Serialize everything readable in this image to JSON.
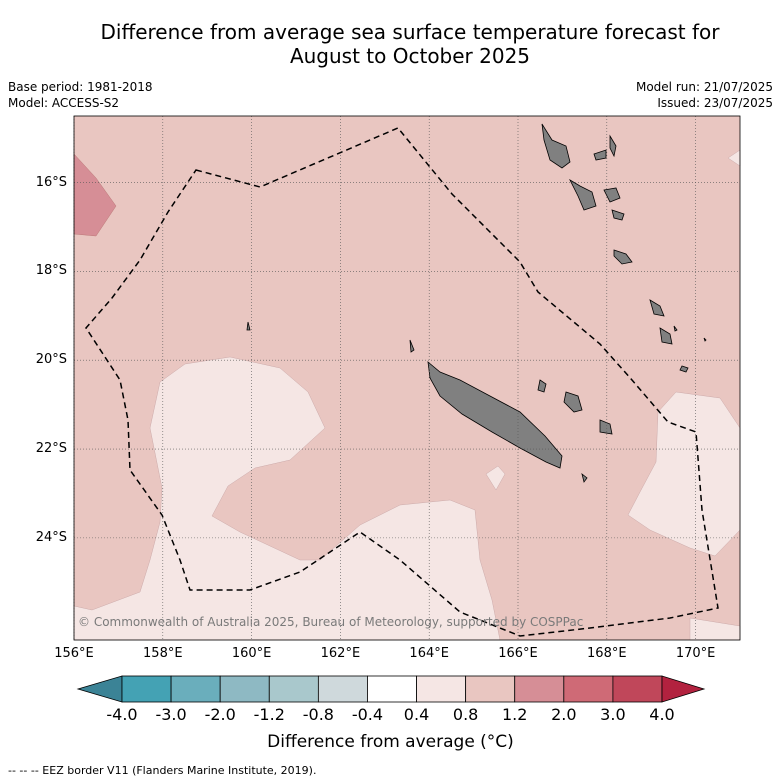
{
  "title_line1": "Difference from average sea surface temperature forecast for",
  "title_line2": "August to October 2025",
  "base_period": "Base period: 1981-2018",
  "model": "Model: ACCESS-S2",
  "model_run": "Model run: 21/07/2025",
  "issued": "Issued: 23/07/2025",
  "copyright": "© Commonwealth of Australia 2025, Bureau of Meteorology, supported by COSPPac",
  "footer": "--  --  -- EEZ border V11 (Flanders Marine Institute, 2019).",
  "colorbar": {
    "title": "Difference from average (°C)",
    "labels": [
      "-4.0",
      "-3.0",
      "-2.0",
      "-1.2",
      "-0.8",
      "-0.4",
      "0.4",
      "0.8",
      "1.2",
      "2.0",
      "3.0",
      "4.0"
    ],
    "colors": [
      "#3b8396",
      "#44a2b4",
      "#6aaebc",
      "#8eb9c3",
      "#a9c8cc",
      "#cfd9dc",
      "#ffffff",
      "#f5e6e4",
      "#e9c6c1",
      "#d68e96",
      "#cf6a76",
      "#c0475a",
      "#b2223f"
    ]
  },
  "map": {
    "lon_range": [
      156,
      171
    ],
    "lat_range": [
      -26.3,
      -14.5
    ],
    "lat_ticks": [
      {
        "v": -16,
        "label": "16°S"
      },
      {
        "v": -18,
        "label": "18°S"
      },
      {
        "v": -20,
        "label": "20°S"
      },
      {
        "v": -22,
        "label": "22°S"
      },
      {
        "v": -24,
        "label": "24°S"
      }
    ],
    "lon_ticks": [
      {
        "v": 156,
        "label": "156°E"
      },
      {
        "v": 158,
        "label": "158°E"
      },
      {
        "v": 160,
        "label": "160°E"
      },
      {
        "v": 162,
        "label": "162°E"
      },
      {
        "v": 164,
        "label": "164°E"
      },
      {
        "v": 166,
        "label": "166°E"
      },
      {
        "v": 168,
        "label": "168°E"
      },
      {
        "v": 170,
        "label": "170°E"
      }
    ],
    "background_category_color": "#e9c6c1",
    "light_category_color": "#f5e6e4",
    "warm_category_color": "#d68e96",
    "land_color": "#808080"
  }
}
